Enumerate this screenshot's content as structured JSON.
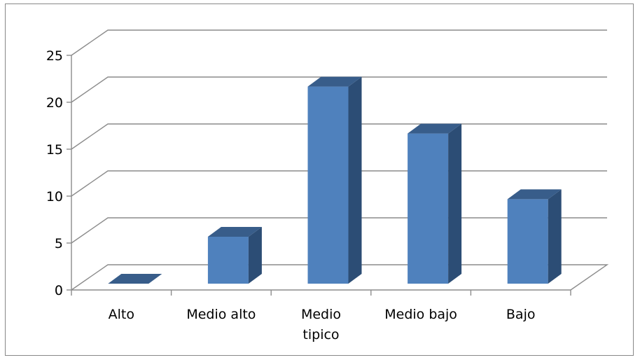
{
  "chart_data": {
    "type": "bar",
    "style": "3d-column",
    "categories": [
      "Alto",
      "Medio alto",
      "Medio tipico",
      "Medio bajo",
      "Bajo"
    ],
    "category_lines": [
      [
        "Alto"
      ],
      [
        "Medio alto"
      ],
      [
        "Medio",
        "tipico"
      ],
      [
        "Medio bajo"
      ],
      [
        "Bajo"
      ]
    ],
    "values": [
      0,
      5,
      21,
      16,
      9
    ],
    "ylim": [
      0,
      25
    ],
    "yticks": [
      0,
      5,
      10,
      15,
      20,
      25
    ],
    "grid": true,
    "legend": "none",
    "colors": {
      "front": "#4F81BD",
      "top": "#385D8A",
      "side": "#2C4D75",
      "grid": "#8C8C8C",
      "axis": "#8C8C8C"
    }
  }
}
